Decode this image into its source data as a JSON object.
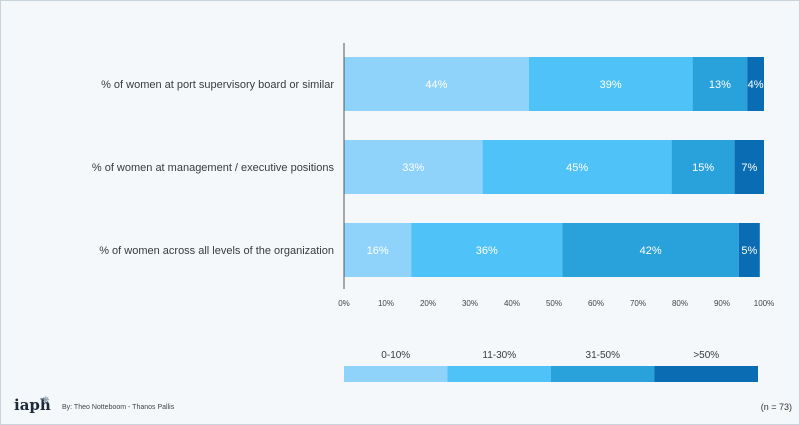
{
  "chart_data": {
    "type": "bar",
    "orientation": "horizontal",
    "stacked": true,
    "categories": [
      "% of women at port supervisory board or similar",
      "% of women at management / executive positions",
      "% of women across all levels of the organization"
    ],
    "series": [
      {
        "name": "0-10%",
        "values": [
          44,
          33,
          16
        ],
        "labels": [
          "44%",
          "33%",
          "16%"
        ]
      },
      {
        "name": "11-30%",
        "values": [
          39,
          45,
          36
        ],
        "labels": [
          "39%",
          "45%",
          "36%"
        ]
      },
      {
        "name": "31-50%",
        "values": [
          13,
          15,
          42
        ],
        "labels": [
          "13%",
          "15%",
          "42%"
        ]
      },
      {
        "name": ">50%",
        "values": [
          4,
          7,
          5
        ],
        "labels": [
          "4%",
          "7%",
          "5%"
        ]
      }
    ],
    "xlim": [
      0,
      100
    ],
    "xticks": [
      "0%",
      "10%",
      "20%",
      "30%",
      "40%",
      "50%",
      "60%",
      "70%",
      "80%",
      "90%",
      "100%"
    ],
    "legend_position": "bottom"
  },
  "colors": {
    "series": [
      "#8fd3fb",
      "#4fc3f7",
      "#29a1db",
      "#0a6db3"
    ],
    "label_text": [
      "#ffffff",
      "#ffffff",
      "#ffffff",
      "#ffffff"
    ]
  },
  "footer": {
    "logo": "iaph",
    "credit": "By: Theo Notteboom - Thanos Pallis",
    "n_label": "(n = 73)"
  }
}
